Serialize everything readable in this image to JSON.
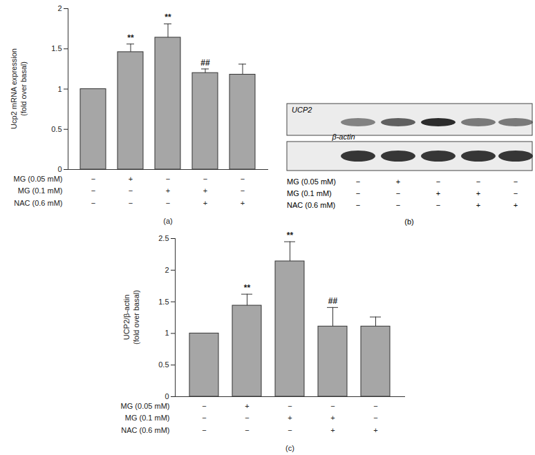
{
  "chart_data": [
    {
      "type": "bar",
      "panel": "(a)",
      "ylabel": [
        "Ucp2 mRNA expression",
        "(fold over basal)"
      ],
      "categories": [
        null,
        null,
        null,
        null,
        null
      ],
      "values": [
        1.0,
        1.46,
        1.64,
        1.2,
        1.18
      ],
      "errors": [
        0,
        0.1,
        0.17,
        0.05,
        0.13
      ],
      "annotations": [
        null,
        "**",
        "**",
        "##",
        null
      ],
      "color": "#a6a6a6",
      "ylim": [
        0,
        2
      ],
      "yticks": [
        0,
        0.5,
        1,
        1.5,
        2
      ],
      "treatments": [
        {
          "name": "MG (0.05 mM)",
          "signs": [
            "−",
            "+",
            "−",
            "−",
            "−"
          ]
        },
        {
          "name": "MG (0.1 mM)",
          "signs": [
            "−",
            "−",
            "+",
            "+",
            "−"
          ]
        },
        {
          "name": "NAC (0.6 mM)",
          "signs": [
            "−",
            "−",
            "−",
            "+",
            "+"
          ]
        }
      ]
    },
    {
      "type": "bar",
      "panel": "(c)",
      "ylabel": [
        "UCP2/β-actin",
        "(fold over basal)"
      ],
      "categories": [
        null,
        null,
        null,
        null,
        null
      ],
      "values": [
        1.0,
        1.44,
        2.14,
        1.11,
        1.11
      ],
      "errors": [
        0,
        0.18,
        0.31,
        0.3,
        0.15
      ],
      "annotations": [
        null,
        "**",
        "**",
        "##",
        null
      ],
      "color": "#a6a6a6",
      "ylim": [
        0,
        2.5
      ],
      "yticks": [
        0,
        0.5,
        1,
        1.5,
        2,
        2.5
      ],
      "treatments": [
        {
          "name": "MG (0.05 mM)",
          "signs": [
            "−",
            "+",
            "−",
            "−",
            "−"
          ]
        },
        {
          "name": "MG (0.1 mM)",
          "signs": [
            "−",
            "−",
            "+",
            "+",
            "−"
          ]
        },
        {
          "name": "NAC (0.6 mM)",
          "signs": [
            "−",
            "−",
            "−",
            "+",
            "+"
          ]
        }
      ]
    }
  ],
  "blot": {
    "panel": "(b)",
    "rows": [
      "UCP2",
      "β-actin"
    ],
    "treatments": [
      {
        "name": "MG (0.05 mM)",
        "signs": [
          "−",
          "+",
          "−",
          "−",
          "−"
        ]
      },
      {
        "name": "MG (0.1 mM)",
        "signs": [
          "−",
          "−",
          "+",
          "+",
          "−"
        ]
      },
      {
        "name": "NAC (0.6 mM)",
        "signs": [
          "−",
          "−",
          "−",
          "+",
          "+"
        ]
      }
    ]
  }
}
